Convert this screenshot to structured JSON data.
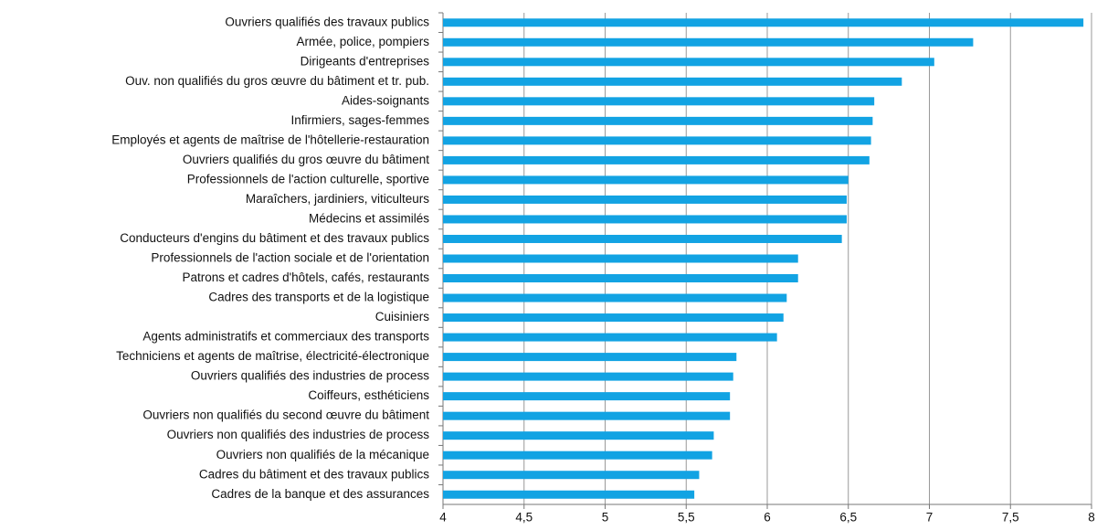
{
  "chart_data": {
    "type": "barh",
    "color": "#12a3e3",
    "grid": true,
    "categories": [
      "Ouvriers qualifiés des travaux publics",
      "Armée, police, pompiers",
      "Dirigeants d'entreprises",
      "Ouv. non qualifiés du gros œuvre du bâtiment et tr. pub.",
      "Aides-soignants",
      "Infirmiers, sages-femmes",
      "Employés et agents de maîtrise de l'hôtellerie-restauration",
      "Ouvriers qualifiés du gros œuvre du bâtiment",
      "Professionnels de l'action culturelle, sportive",
      "Maraîchers, jardiniers, viticulteurs",
      "Médecins et assimilés",
      "Conducteurs d'engins du bâtiment et des travaux publics",
      "Professionnels de l'action sociale et de l'orientation",
      "Patrons et cadres d'hôtels, cafés, restaurants",
      "Cadres des transports et de la logistique",
      "Cuisiniers",
      "Agents administratifs et commerciaux des transports",
      "Techniciens et agents de maîtrise, électricité-électronique",
      "Ouvriers qualifiés des industries de process",
      "Coiffeurs, esthéticiens",
      "Ouvriers non qualifiés du second œuvre du bâtiment",
      "Ouvriers non qualifiés des industries de process",
      "Ouvriers non qualifiés de la mécanique",
      "Cadres du bâtiment et des travaux publics",
      "Cadres de la banque et des assurances"
    ],
    "values": [
      7.95,
      7.27,
      7.03,
      6.83,
      6.66,
      6.65,
      6.64,
      6.63,
      6.5,
      6.49,
      6.49,
      6.46,
      6.19,
      6.19,
      6.12,
      6.1,
      6.06,
      5.81,
      5.79,
      5.77,
      5.77,
      5.67,
      5.66,
      5.58,
      5.55
    ],
    "xlim": [
      4,
      8
    ],
    "xticks": [
      4,
      {
        "value": 4.5,
        "label": "4,5"
      },
      5,
      {
        "value": 5.5,
        "label": "5,5"
      },
      6,
      {
        "value": 6.5,
        "label": "6,5"
      },
      7,
      {
        "value": 7.5,
        "label": "7,5"
      },
      8
    ]
  }
}
